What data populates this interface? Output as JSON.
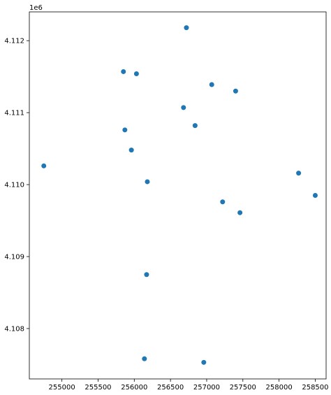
{
  "chart_data": {
    "type": "scatter",
    "title": "",
    "xlabel": "",
    "ylabel": "",
    "y_offset_label": "1e6",
    "xlim": [
      254550,
      258650
    ],
    "ylim": [
      4107300,
      4112400
    ],
    "y_scale": 1000000,
    "x_ticks": [
      255000,
      255500,
      256000,
      256500,
      257000,
      257500,
      258000,
      258500
    ],
    "x_tick_labels": [
      "255000",
      "255500",
      "256000",
      "256500",
      "257000",
      "257500",
      "258000",
      "258500"
    ],
    "y_ticks": [
      4108000,
      4109000,
      4110000,
      4111000,
      4112000
    ],
    "y_tick_labels": [
      "4.108",
      "4.109",
      "4.110",
      "4.111",
      "4.112"
    ],
    "grid": false,
    "marker_color": "#1f77b4",
    "points": [
      {
        "x": 256720,
        "y": 4112180
      },
      {
        "x": 255850,
        "y": 4111570
      },
      {
        "x": 256030,
        "y": 4111540
      },
      {
        "x": 257070,
        "y": 4111390
      },
      {
        "x": 257400,
        "y": 4111300
      },
      {
        "x": 256680,
        "y": 4111070
      },
      {
        "x": 256840,
        "y": 4110820
      },
      {
        "x": 255870,
        "y": 4110760
      },
      {
        "x": 255960,
        "y": 4110480
      },
      {
        "x": 254750,
        "y": 4110260
      },
      {
        "x": 256180,
        "y": 4110040
      },
      {
        "x": 258270,
        "y": 4110160
      },
      {
        "x": 258500,
        "y": 4109850
      },
      {
        "x": 257220,
        "y": 4109760
      },
      {
        "x": 257460,
        "y": 4109610
      },
      {
        "x": 256170,
        "y": 4108750
      },
      {
        "x": 256140,
        "y": 4107580
      },
      {
        "x": 256960,
        "y": 4107530
      }
    ]
  }
}
